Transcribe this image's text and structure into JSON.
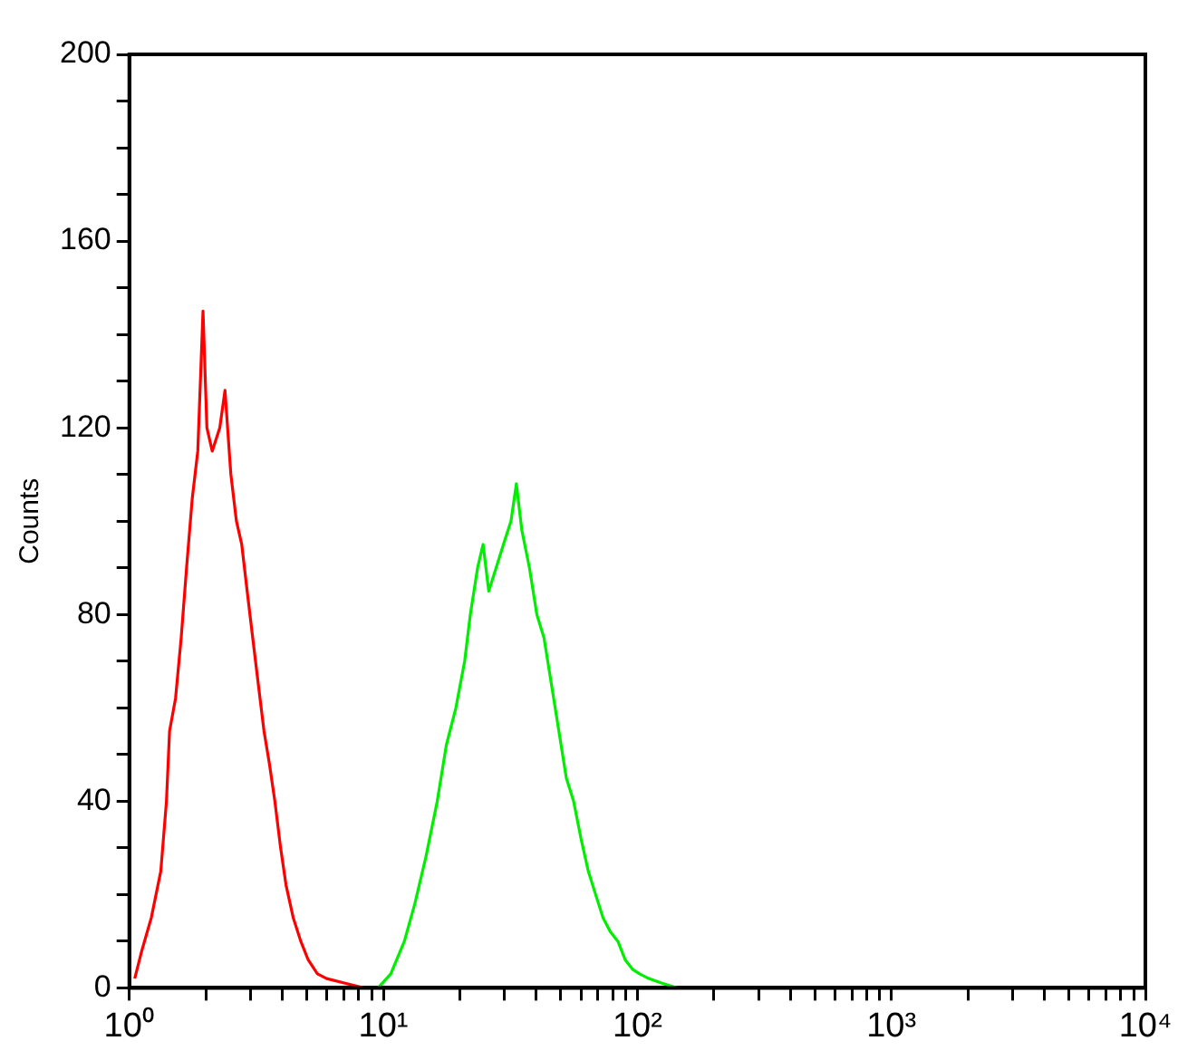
{
  "chart_data": {
    "type": "line",
    "ylabel": "Counts",
    "log": "x",
    "grid": false,
    "legend": false,
    "marker": "none",
    "line_style": "solid",
    "xlim": [
      1,
      10000
    ],
    "ylim": [
      0,
      200
    ],
    "xticks": [
      {
        "value": 1,
        "label": "10⁰"
      },
      {
        "value": 2,
        "label": null
      },
      {
        "value": 3,
        "label": null
      },
      {
        "value": 4,
        "label": null
      },
      {
        "value": 5,
        "label": null
      },
      {
        "value": 6,
        "label": null
      },
      {
        "value": 7,
        "label": null
      },
      {
        "value": 8,
        "label": null
      },
      {
        "value": 9,
        "label": null
      },
      {
        "value": 10,
        "label": "10¹"
      },
      {
        "value": 20,
        "label": null
      },
      {
        "value": 30,
        "label": null
      },
      {
        "value": 40,
        "label": null
      },
      {
        "value": 50,
        "label": null
      },
      {
        "value": 60,
        "label": null
      },
      {
        "value": 70,
        "label": null
      },
      {
        "value": 80,
        "label": null
      },
      {
        "value": 90,
        "label": null
      },
      {
        "value": 100,
        "label": "10²"
      },
      {
        "value": 200,
        "label": null
      },
      {
        "value": 300,
        "label": null
      },
      {
        "value": 400,
        "label": null
      },
      {
        "value": 500,
        "label": null
      },
      {
        "value": 600,
        "label": null
      },
      {
        "value": 700,
        "label": null
      },
      {
        "value": 800,
        "label": null
      },
      {
        "value": 900,
        "label": null
      },
      {
        "value": 1000,
        "label": "10³"
      },
      {
        "value": 2000,
        "label": null
      },
      {
        "value": 3000,
        "label": null
      },
      {
        "value": 4000,
        "label": null
      },
      {
        "value": 5000,
        "label": null
      },
      {
        "value": 6000,
        "label": null
      },
      {
        "value": 7000,
        "label": null
      },
      {
        "value": 8000,
        "label": null
      },
      {
        "value": 9000,
        "label": null
      },
      {
        "value": 10000,
        "label": "10⁴"
      }
    ],
    "yticks": [
      0,
      {
        "value": 10,
        "label": null
      },
      {
        "value": 20,
        "label": null
      },
      {
        "value": 30,
        "label": null
      },
      40,
      {
        "value": 50,
        "label": null
      },
      {
        "value": 60,
        "label": null
      },
      {
        "value": 70,
        "label": null
      },
      80,
      {
        "value": 90,
        "label": null
      },
      {
        "value": 100,
        "label": null
      },
      {
        "value": 110,
        "label": null
      },
      120,
      {
        "value": 130,
        "label": null
      },
      {
        "value": 140,
        "label": null
      },
      {
        "value": 150,
        "label": null
      },
      160,
      {
        "value": 170,
        "label": null
      },
      {
        "value": 180,
        "label": null
      },
      {
        "value": 190,
        "label": null
      },
      200
    ],
    "series": [
      {
        "color": "#ff0000",
        "x": [
          1.05,
          1.12,
          1.22,
          1.33,
          1.4,
          1.44,
          1.52,
          1.6,
          1.68,
          1.77,
          1.86,
          1.95,
          2.02,
          2.12,
          2.27,
          2.38,
          2.51,
          2.64,
          2.77,
          2.91,
          3.06,
          3.22,
          3.39,
          3.56,
          3.74,
          3.94,
          4.14,
          4.42,
          4.73,
          5.06,
          5.5,
          5.98,
          7.07,
          8.35
        ],
        "values": [
          2,
          8,
          15,
          25,
          40,
          55,
          62,
          75,
          90,
          105,
          115,
          145,
          120,
          115,
          120,
          128,
          110,
          100,
          95,
          85,
          75,
          65,
          55,
          48,
          40,
          30,
          22,
          15,
          10,
          6,
          3,
          2,
          1,
          0
        ]
      },
      {
        "color": "#00ee00",
        "x": [
          9.54,
          10.7,
          12.1,
          13.3,
          14.7,
          16.3,
          17.7,
          19.3,
          20.9,
          22,
          23.5,
          24.7,
          26,
          27.8,
          29.7,
          31.8,
          33.4,
          35.1,
          37.6,
          40.2,
          42.9,
          45.9,
          49.1,
          52.5,
          56.1,
          60,
          64.1,
          68.5,
          73.3,
          78.3,
          83.8,
          89.6,
          95.7,
          102,
          111,
          125,
          143
        ],
        "values": [
          0,
          3,
          10,
          18,
          28,
          40,
          52,
          60,
          70,
          80,
          90,
          95,
          85,
          90,
          95,
          100,
          108,
          98,
          90,
          80,
          75,
          65,
          55,
          45,
          40,
          32,
          25,
          20,
          15,
          12,
          10,
          6,
          4,
          3,
          2,
          1,
          0
        ]
      }
    ]
  }
}
